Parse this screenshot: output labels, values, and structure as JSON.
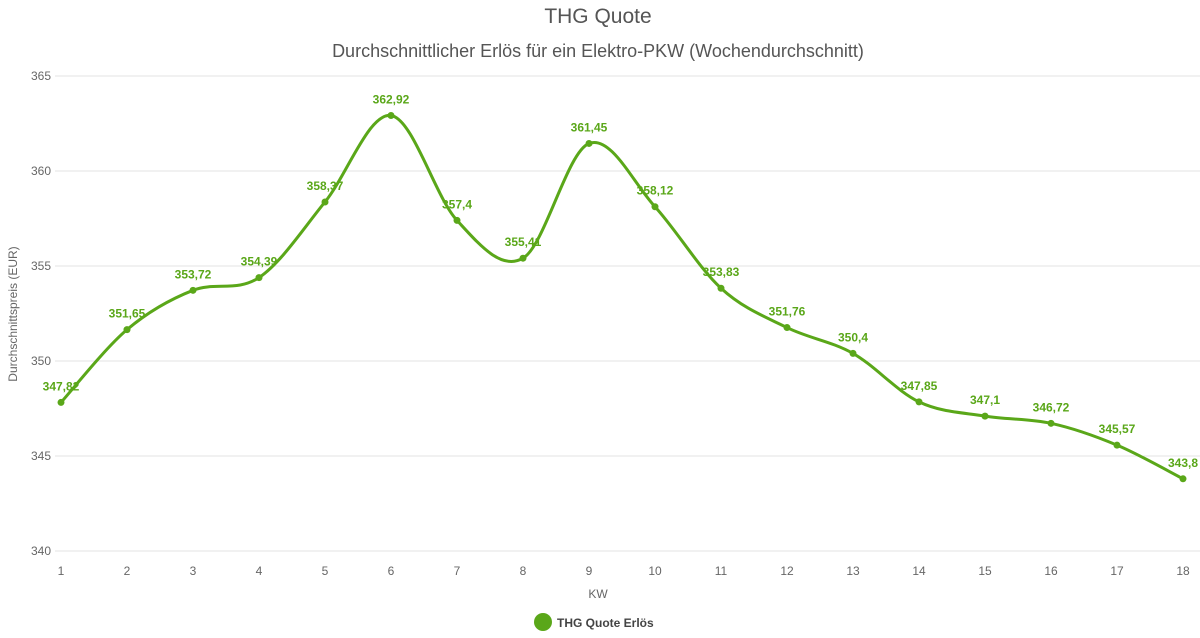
{
  "chart_data": {
    "type": "line",
    "title": "THG Quote",
    "subtitle": "Durchschnittlicher Erlös für ein Elektro-PKW (Wochendurchschnitt)",
    "xlabel": "KW",
    "ylabel": "Durchschnittspreis (EUR)",
    "x": [
      1,
      2,
      3,
      4,
      5,
      6,
      7,
      8,
      9,
      10,
      11,
      12,
      13,
      14,
      15,
      16,
      17,
      18
    ],
    "x_tick_labels": [
      "1",
      "2",
      "3",
      "4",
      "5",
      "6",
      "7",
      "8",
      "9",
      "10",
      "11",
      "12",
      "13",
      "14",
      "15",
      "16",
      "17",
      "18"
    ],
    "ylim": [
      340,
      365
    ],
    "y_ticks": [
      340,
      345,
      350,
      355,
      360,
      365
    ],
    "grid": true,
    "legend_position": "bottom-center",
    "series": [
      {
        "name": "THG Quote Erlös",
        "color": "#5aa719",
        "values": [
          347.82,
          351.65,
          353.72,
          354.39,
          358.37,
          362.92,
          357.4,
          355.41,
          361.45,
          358.12,
          353.83,
          351.76,
          350.4,
          347.85,
          347.1,
          346.72,
          345.57,
          343.8
        ],
        "data_labels": [
          "347,82",
          "351,65",
          "353,72",
          "354,39",
          "358,37",
          "362,92",
          "357,4",
          "355,41",
          "361,45",
          "358,12",
          "353,83",
          "351,76",
          "350,4",
          "347,85",
          "347,1",
          "346,72",
          "345,57",
          "343,8"
        ]
      }
    ]
  }
}
